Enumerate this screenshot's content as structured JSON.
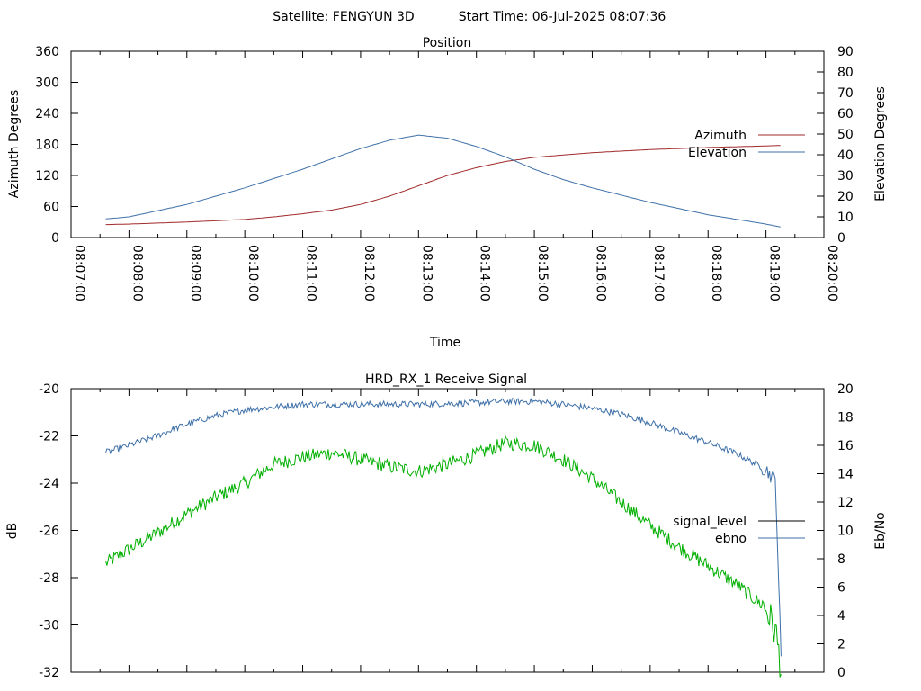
{
  "header": {
    "satellite": "Satellite: FENGYUN 3D",
    "start_time": "Start Time: 06-Jul-2025 08:07:36"
  },
  "chart_data": [
    {
      "type": "line",
      "title": "Position",
      "xlabel": "Time",
      "ylabel": "Azimuth Degrees",
      "y2label": "Elevation Degrees",
      "xlim": [
        "08:07:00",
        "08:20:00"
      ],
      "x_ticks": [
        "08:07:00",
        "08:08:00",
        "08:09:00",
        "08:10:00",
        "08:11:00",
        "08:12:00",
        "08:13:00",
        "08:14:00",
        "08:15:00",
        "08:16:00",
        "08:17:00",
        "08:18:00",
        "08:19:00",
        "08:20:00"
      ],
      "ylim": [
        0,
        360
      ],
      "y_ticks": [
        0,
        60,
        120,
        180,
        240,
        300,
        360
      ],
      "y2lim": [
        0,
        90
      ],
      "y2_ticks": [
        0,
        10,
        20,
        30,
        40,
        50,
        60,
        70,
        80,
        90
      ],
      "grid": false,
      "legend_position": "right",
      "series": [
        {
          "name": "Azimuth",
          "axis": "left",
          "color": "#a02828",
          "points": [
            [
              "08:07:36",
              25
            ],
            [
              "08:08:00",
              26
            ],
            [
              "08:09:00",
              30
            ],
            [
              "08:10:00",
              35
            ],
            [
              "08:10:30",
              40
            ],
            [
              "08:11:00",
              46
            ],
            [
              "08:11:30",
              53
            ],
            [
              "08:12:00",
              64
            ],
            [
              "08:12:30",
              80
            ],
            [
              "08:13:00",
              100
            ],
            [
              "08:13:30",
              120
            ],
            [
              "08:14:00",
              135
            ],
            [
              "08:14:30",
              147
            ],
            [
              "08:15:00",
              155
            ],
            [
              "08:16:00",
              164
            ],
            [
              "08:17:00",
              170
            ],
            [
              "08:18:00",
              174
            ],
            [
              "08:19:00",
              177
            ],
            [
              "08:19:16",
              178
            ]
          ]
        },
        {
          "name": "Elevation",
          "axis": "right",
          "color": "#3e70a8",
          "points": [
            [
              "08:07:36",
              9
            ],
            [
              "08:08:00",
              10
            ],
            [
              "08:09:00",
              16
            ],
            [
              "08:10:00",
              24
            ],
            [
              "08:11:00",
              33
            ],
            [
              "08:11:30",
              38
            ],
            [
              "08:12:00",
              43
            ],
            [
              "08:12:30",
              47
            ],
            [
              "08:13:00",
              49.5
            ],
            [
              "08:13:30",
              48
            ],
            [
              "08:14:00",
              44
            ],
            [
              "08:14:30",
              39
            ],
            [
              "08:15:00",
              33
            ],
            [
              "08:15:30",
              28
            ],
            [
              "08:16:00",
              24
            ],
            [
              "08:17:00",
              17
            ],
            [
              "08:18:00",
              11
            ],
            [
              "08:19:00",
              6.5
            ],
            [
              "08:19:16",
              5
            ]
          ]
        }
      ]
    },
    {
      "type": "line",
      "title": "HRD_RX_1 Receive Signal",
      "xlabel": "",
      "ylabel": "dB",
      "y2label": "Eb/No",
      "xlim": [
        "08:07:00",
        "08:20:00"
      ],
      "ylim": [
        -32,
        -20
      ],
      "y_ticks": [
        -32,
        -30,
        -28,
        -26,
        -24,
        -22,
        -20
      ],
      "y2lim": [
        0,
        20
      ],
      "y2_ticks": [
        0,
        2,
        4,
        6,
        8,
        10,
        12,
        14,
        16,
        18,
        20
      ],
      "grid": false,
      "legend_position": "right",
      "series": [
        {
          "name": "signal_level",
          "axis": "left",
          "color": "#00b000",
          "legend_color": "#000000",
          "points": [
            [
              "08:07:36",
              -27.4
            ],
            [
              "08:08:00",
              -26.8
            ],
            [
              "08:08:30",
              -26.1
            ],
            [
              "08:09:00",
              -25.3
            ],
            [
              "08:09:30",
              -24.6
            ],
            [
              "08:10:00",
              -24.0
            ],
            [
              "08:10:30",
              -23.2
            ],
            [
              "08:11:00",
              -22.9
            ],
            [
              "08:11:30",
              -22.7
            ],
            [
              "08:12:00",
              -23.0
            ],
            [
              "08:12:30",
              -23.3
            ],
            [
              "08:13:00",
              -23.5
            ],
            [
              "08:13:30",
              -23.2
            ],
            [
              "08:14:00",
              -22.8
            ],
            [
              "08:14:30",
              -22.3
            ],
            [
              "08:15:00",
              -22.4
            ],
            [
              "08:15:30",
              -23.0
            ],
            [
              "08:16:00",
              -23.8
            ],
            [
              "08:16:30",
              -24.8
            ],
            [
              "08:17:00",
              -25.8
            ],
            [
              "08:17:30",
              -26.7
            ],
            [
              "08:18:00",
              -27.5
            ],
            [
              "08:18:30",
              -28.3
            ],
            [
              "08:19:00",
              -29.3
            ],
            [
              "08:19:10",
              -30.3
            ],
            [
              "08:19:16",
              -31.9
            ]
          ]
        },
        {
          "name": "ebno",
          "axis": "right",
          "color": "#3e70a8",
          "points": [
            [
              "08:07:36",
              15.5
            ],
            [
              "08:08:00",
              16.0
            ],
            [
              "08:08:30",
              16.7
            ],
            [
              "08:09:00",
              17.5
            ],
            [
              "08:09:30",
              18.1
            ],
            [
              "08:10:00",
              18.5
            ],
            [
              "08:10:30",
              18.7
            ],
            [
              "08:11:00",
              18.9
            ],
            [
              "08:12:00",
              18.9
            ],
            [
              "08:13:00",
              18.9
            ],
            [
              "08:14:00",
              19.0
            ],
            [
              "08:14:30",
              19.1
            ],
            [
              "08:15:00",
              19.1
            ],
            [
              "08:15:30",
              18.9
            ],
            [
              "08:16:00",
              18.6
            ],
            [
              "08:16:30",
              18.2
            ],
            [
              "08:17:00",
              17.6
            ],
            [
              "08:17:30",
              16.9
            ],
            [
              "08:18:00",
              16.2
            ],
            [
              "08:18:30",
              15.4
            ],
            [
              "08:19:00",
              14.3
            ],
            [
              "08:19:10",
              13.5
            ],
            [
              "08:19:16",
              0
            ]
          ]
        }
      ]
    }
  ]
}
